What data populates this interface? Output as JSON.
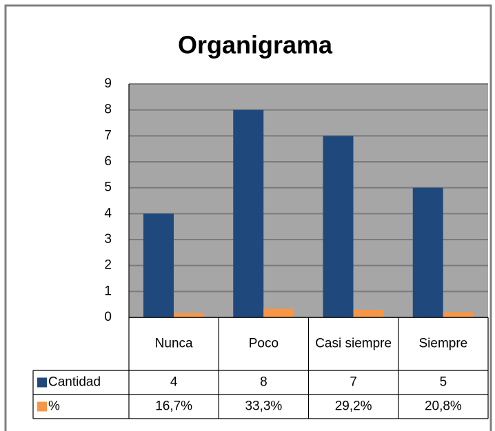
{
  "chart_data": {
    "type": "bar",
    "title": "Organigrama",
    "categories": [
      "Nunca",
      "Poco",
      "Casi siempre",
      "Siempre"
    ],
    "series": [
      {
        "name": "Cantidad",
        "color": "#1f497d",
        "values": [
          4,
          8,
          7,
          5
        ]
      },
      {
        "name": "%",
        "color": "#f79646",
        "values": [
          0.167,
          0.333,
          0.292,
          0.208
        ],
        "value_labels": [
          "16,7%",
          "33,3%",
          "29,2%",
          "20,8%"
        ]
      }
    ],
    "ylim": [
      0,
      9
    ],
    "yticks": [
      0,
      1,
      2,
      3,
      4,
      5,
      6,
      7,
      8,
      9
    ],
    "grid": true,
    "data_table": true
  }
}
